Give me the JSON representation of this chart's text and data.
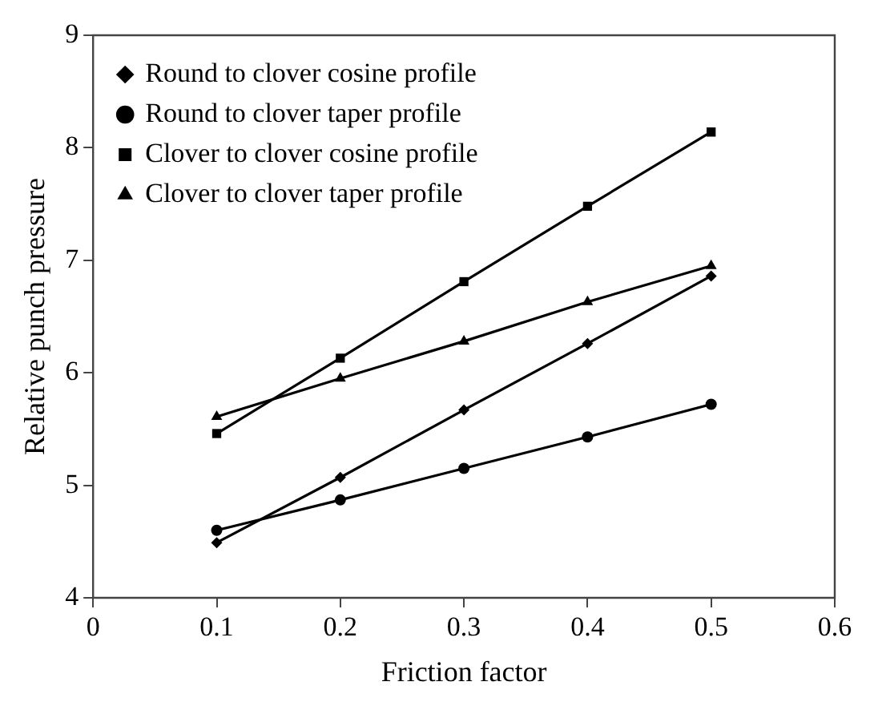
{
  "chart_data": {
    "type": "line",
    "xlabel": "Friction factor",
    "ylabel": "Relative punch pressure",
    "x": [
      0.1,
      0.2,
      0.3,
      0.4,
      0.5
    ],
    "series": [
      {
        "name": "Round to clover cosine profile",
        "color": "#000000",
        "marker": "diamond",
        "values": [
          4.49,
          5.07,
          5.67,
          6.26,
          6.86
        ]
      },
      {
        "name": "Round to clover taper profile",
        "color": "#000000",
        "marker": "circle",
        "values": [
          4.6,
          4.87,
          5.15,
          5.43,
          5.72
        ]
      },
      {
        "name": "Clover to clover cosine profile",
        "color": "#000000",
        "marker": "square",
        "values": [
          5.46,
          6.13,
          6.81,
          7.48,
          8.14
        ]
      },
      {
        "name": "Clover to clover taper profile",
        "color": "#000000",
        "marker": "triangle",
        "values": [
          5.61,
          5.95,
          6.28,
          6.63,
          6.95
        ]
      }
    ],
    "xlim": [
      0,
      0.6
    ],
    "xticks": [
      0,
      0.1,
      0.2,
      0.3,
      0.4,
      0.5,
      0.6
    ],
    "ylim": [
      4,
      9
    ],
    "yticks": [
      4,
      5,
      6,
      7,
      8,
      9
    ],
    "grid": false,
    "legend": "top left",
    "line_style": "solid"
  }
}
